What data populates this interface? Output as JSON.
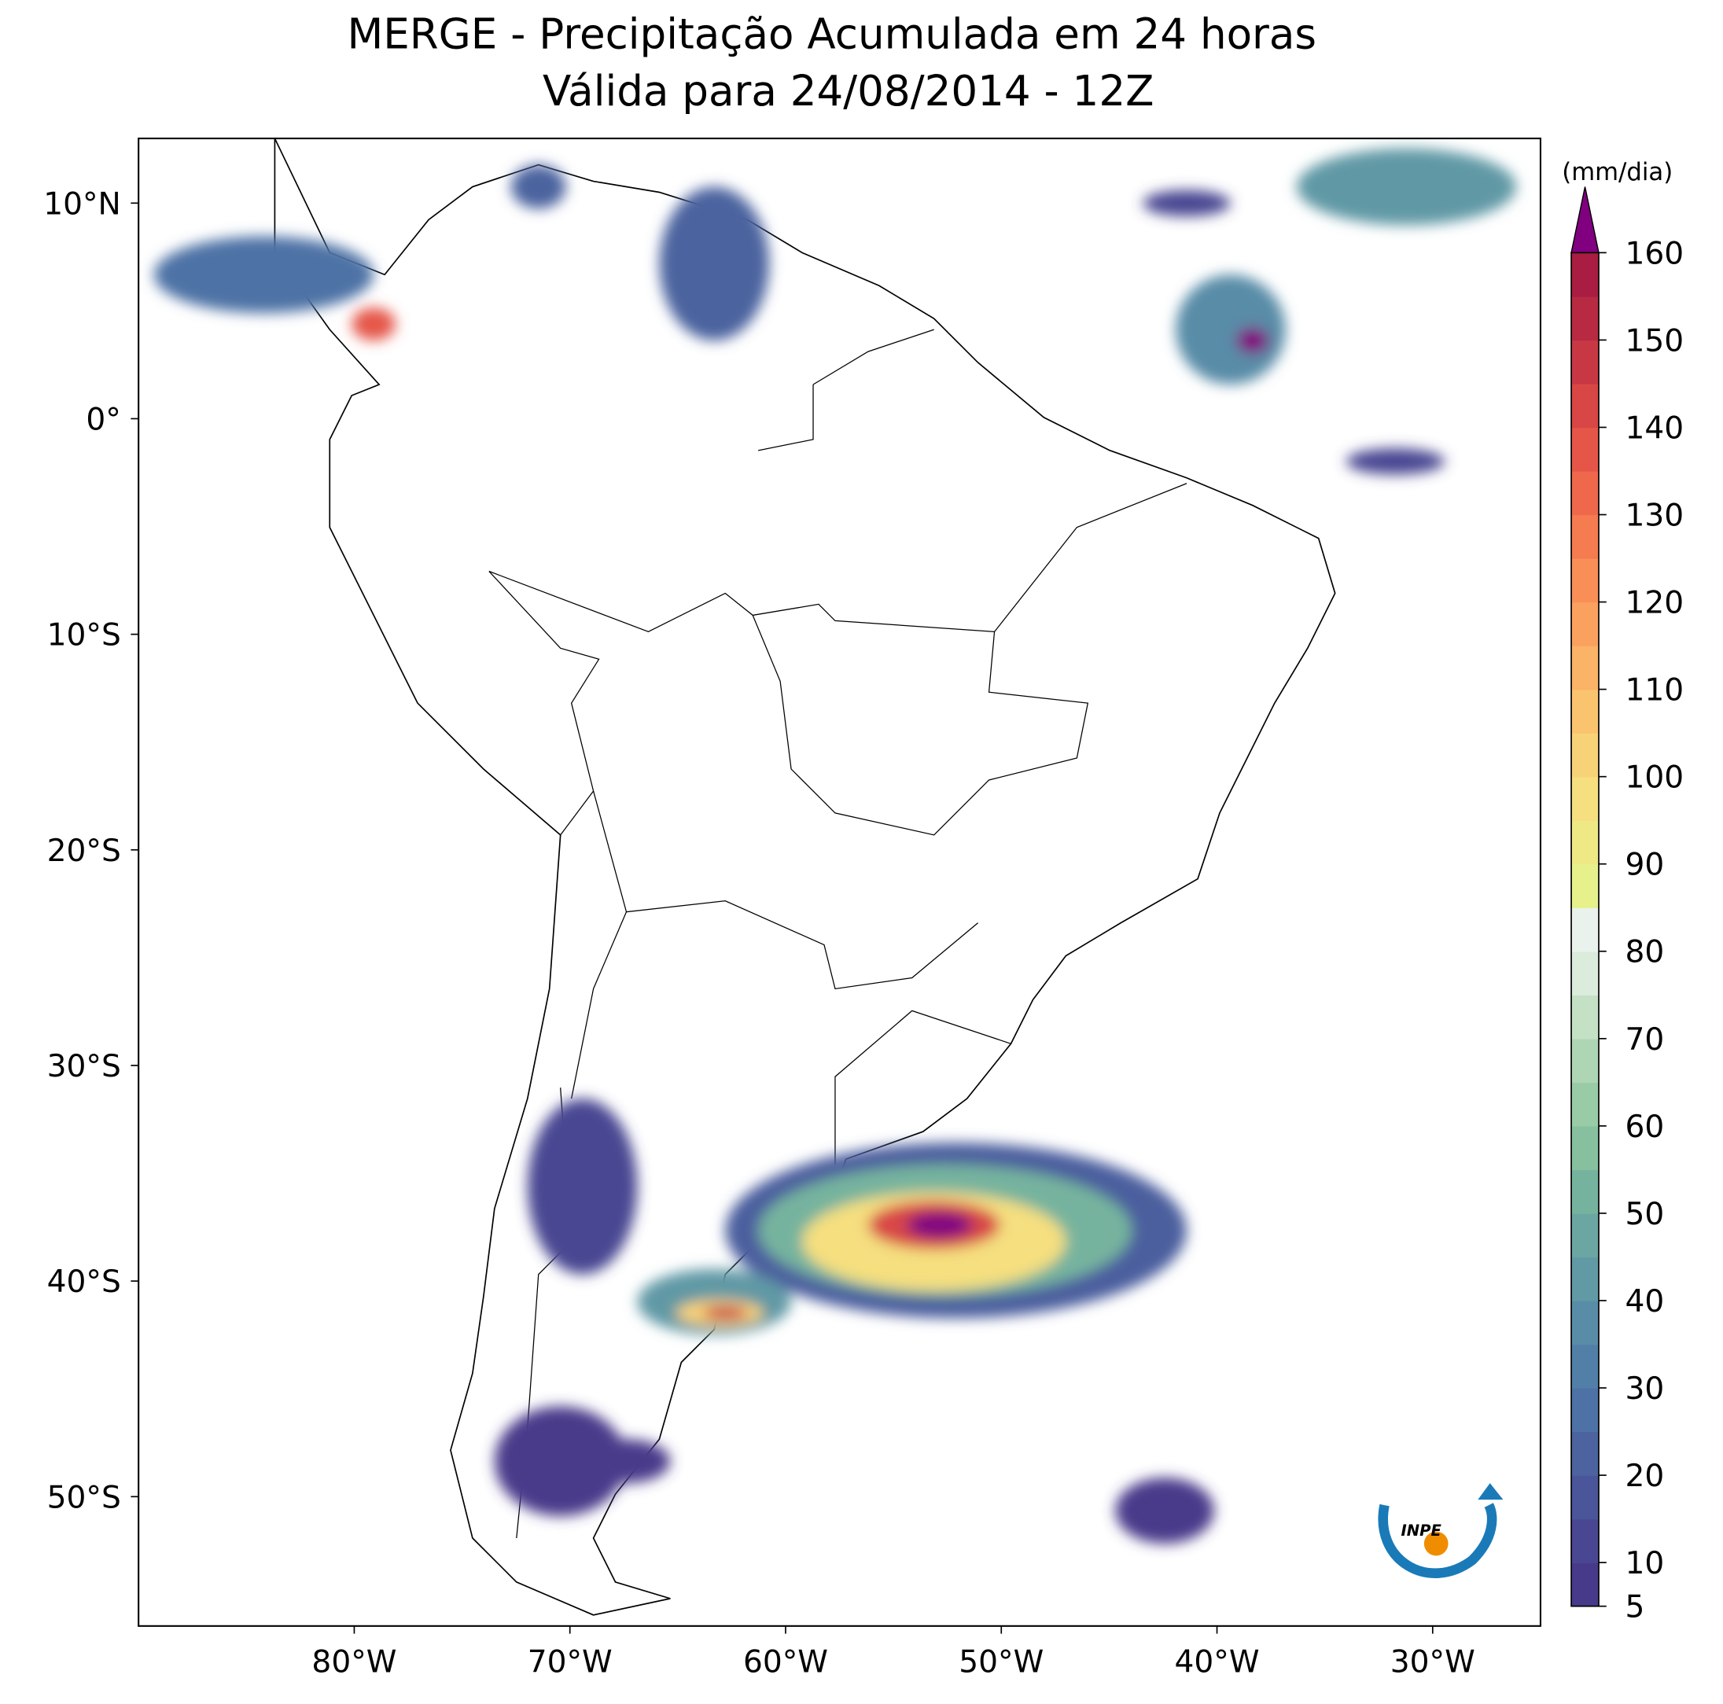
{
  "chart_data": {
    "type": "map",
    "title": "MERGE - Precipitação Acumulada em 24 horas",
    "subtitle": "Válida para 24/08/2014 - 12Z",
    "xlim": [
      -90,
      -25
    ],
    "ylim": [
      -56,
      13
    ],
    "xticks": [
      {
        "value": -80,
        "label": "80°W"
      },
      {
        "value": -70,
        "label": "70°W"
      },
      {
        "value": -60,
        "label": "60°W"
      },
      {
        "value": -50,
        "label": "50°W"
      },
      {
        "value": -40,
        "label": "40°W"
      },
      {
        "value": -30,
        "label": "30°W"
      }
    ],
    "yticks": [
      {
        "value": 10,
        "label": "10°N"
      },
      {
        "value": 0,
        "label": "0°"
      },
      {
        "value": -10,
        "label": "10°S"
      },
      {
        "value": -20,
        "label": "20°S"
      },
      {
        "value": -30,
        "label": "30°S"
      },
      {
        "value": -40,
        "label": "40°S"
      },
      {
        "value": -50,
        "label": "50°S"
      }
    ],
    "colorbar": {
      "label": "(mm/dia)",
      "lim": [
        5,
        160
      ],
      "ticks": [
        5,
        10,
        20,
        30,
        40,
        50,
        60,
        70,
        80,
        90,
        100,
        110,
        120,
        130,
        140,
        150,
        160
      ],
      "colors": [
        "#483a8a",
        "#4a4792",
        "#4b5599",
        "#4c639f",
        "#4e72a5",
        "#527fa8",
        "#598ca7",
        "#6199a5",
        "#6ba6a2",
        "#76b39e",
        "#86c09f",
        "#99cba7",
        "#aed6b4",
        "#c4e1c6",
        "#dbecdc",
        "#eaf2ee",
        "#e6f18b",
        "#efe985",
        "#f5df7f",
        "#f8d277",
        "#fac46f",
        "#fbb367",
        "#fba15f",
        "#f98f57",
        "#f57b50",
        "#ef684b",
        "#e55648",
        "#d84646",
        "#c83844",
        "#b82a42",
        "#a81d41"
      ],
      "over_color": "#800080"
    },
    "logo": "INPE"
  }
}
